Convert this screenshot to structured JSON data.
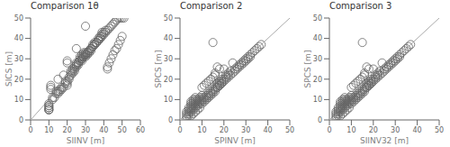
{
  "chart_data": [
    {
      "type": "scatter",
      "title": "Comparison 1θ",
      "x_label": "SIINV [m]",
      "y_label": "SICS [m]",
      "xlim": [
        0,
        60
      ],
      "ylim": [
        0,
        50
      ],
      "xticks": [
        0,
        10,
        20,
        30,
        40,
        50,
        60
      ],
      "yticks": [
        0,
        10,
        20,
        30,
        40,
        50
      ],
      "grid": false,
      "series": [
        {
          "type": "line",
          "color": "#aaaaaa",
          "x": [
            0,
            50
          ],
          "values": [
            0,
            50
          ]
        },
        {
          "type": "scatter",
          "marker": "circle",
          "color": "#666666",
          "x": [
            10,
            10,
            10,
            10,
            10,
            10,
            10,
            10,
            11,
            11,
            11,
            12,
            12,
            13,
            14,
            14,
            15,
            15,
            15,
            16,
            16,
            17,
            17,
            18,
            18,
            19,
            19,
            20,
            20,
            20,
            20,
            20,
            21,
            21,
            22,
            22,
            23,
            23,
            24,
            24,
            25,
            25,
            25,
            25,
            26,
            26,
            27,
            27,
            27,
            28,
            28,
            28,
            28,
            29,
            29,
            29,
            30,
            30,
            30,
            30,
            31,
            31,
            32,
            32,
            33,
            33,
            33,
            34,
            34,
            35,
            35,
            36,
            37,
            37,
            38,
            38,
            39,
            39,
            40,
            41,
            42,
            42,
            43,
            44,
            45,
            46,
            47,
            48,
            49,
            50,
            22,
            23,
            24,
            25,
            26,
            27,
            28,
            29,
            30,
            31,
            32,
            33,
            34,
            35,
            36,
            37,
            38,
            39,
            40,
            41,
            42,
            43,
            44,
            45,
            46,
            47,
            48,
            49,
            50,
            51
          ],
          "values": [
            5,
            5,
            5,
            6,
            6,
            7,
            7,
            8,
            15,
            16,
            17,
            10,
            11,
            11,
            13,
            14,
            13,
            14,
            20,
            14,
            15,
            15,
            16,
            16,
            22,
            18,
            19,
            17,
            18,
            19,
            28,
            29,
            20,
            21,
            22,
            23,
            23,
            24,
            24,
            25,
            26,
            27,
            28,
            35,
            27,
            28,
            29,
            30,
            31,
            29,
            30,
            31,
            32,
            31,
            32,
            33,
            31,
            32,
            33,
            46,
            32,
            33,
            33,
            34,
            34,
            35,
            35,
            36,
            37,
            37,
            38,
            38,
            39,
            40,
            40,
            41,
            42,
            43,
            43,
            44,
            25,
            26,
            28,
            30,
            32,
            34,
            35,
            37,
            39,
            41,
            24,
            25,
            26,
            27,
            28,
            29,
            30,
            31,
            32,
            33,
            34,
            35,
            36,
            37,
            38,
            39,
            40,
            41,
            42,
            43,
            44,
            45,
            46,
            47,
            48,
            49,
            50,
            50,
            50,
            50
          ]
        }
      ]
    },
    {
      "type": "scatter",
      "title": "Comparison 2",
      "x_label": "SPINV [m]",
      "y_label": "SPCS [m]",
      "xlim": [
        0,
        50
      ],
      "ylim": [
        0,
        50
      ],
      "xticks": [
        0,
        10,
        20,
        30,
        40,
        50
      ],
      "yticks": [
        0,
        10,
        20,
        30,
        40,
        50
      ],
      "grid": false,
      "series": [
        {
          "type": "line",
          "color": "#aaaaaa",
          "x": [
            0,
            50
          ],
          "values": [
            0,
            50
          ]
        },
        {
          "type": "scatter",
          "marker": "circle",
          "color": "#666666",
          "x": [
            3,
            3,
            3,
            4,
            4,
            4,
            4,
            5,
            5,
            5,
            5,
            5,
            5,
            6,
            6,
            6,
            6,
            6,
            6,
            7,
            7,
            7,
            7,
            7,
            7,
            8,
            8,
            8,
            8,
            9,
            9,
            9,
            9,
            10,
            10,
            10,
            10,
            10,
            11,
            11,
            11,
            12,
            12,
            12,
            13,
            13,
            13,
            14,
            14,
            14,
            15,
            15,
            15,
            15,
            16,
            16,
            16,
            16,
            17,
            17,
            17,
            17,
            18,
            18,
            18,
            18,
            19,
            19,
            19,
            20,
            20,
            21,
            21,
            22,
            22,
            23,
            24,
            25,
            26,
            27,
            28,
            29,
            30,
            31,
            32,
            33,
            34,
            35,
            36,
            37,
            3,
            4,
            5,
            6,
            7,
            8,
            9,
            10,
            11,
            12,
            13,
            14,
            15,
            16,
            17,
            18,
            19,
            20,
            21,
            22,
            23,
            24,
            25,
            26,
            27,
            28,
            29,
            30,
            31,
            32
          ],
          "values": [
            2,
            3,
            4,
            3,
            4,
            5,
            6,
            4,
            5,
            6,
            7,
            8,
            9,
            5,
            6,
            7,
            8,
            9,
            10,
            6,
            7,
            8,
            9,
            10,
            11,
            7,
            8,
            9,
            10,
            8,
            9,
            10,
            11,
            9,
            10,
            11,
            12,
            16,
            10,
            11,
            17,
            11,
            12,
            18,
            12,
            13,
            19,
            13,
            14,
            20,
            14,
            15,
            21,
            38,
            15,
            16,
            22,
            23,
            16,
            17,
            18,
            26,
            17,
            18,
            19,
            25,
            18,
            19,
            20,
            20,
            25,
            21,
            22,
            22,
            23,
            24,
            28,
            25,
            26,
            27,
            28,
            29,
            30,
            31,
            32,
            33,
            34,
            35,
            36,
            37,
            1,
            2,
            2,
            3,
            4,
            5,
            6,
            8,
            9,
            10,
            11,
            12,
            13,
            14,
            16,
            17,
            18,
            19,
            20,
            21,
            22,
            23,
            24,
            25,
            26,
            27,
            28,
            29,
            30,
            31
          ]
        }
      ]
    },
    {
      "type": "scatter",
      "title": "Comparison 3",
      "x_label": "SIINV32 [m]",
      "y_label": "SPCS [m]",
      "xlim": [
        0,
        50
      ],
      "ylim": [
        0,
        50
      ],
      "xticks": [
        0,
        10,
        20,
        30,
        40,
        50
      ],
      "yticks": [
        0,
        10,
        20,
        30,
        40,
        50
      ],
      "grid": false,
      "series": [
        {
          "type": "line",
          "color": "#aaaaaa",
          "x": [
            0,
            50
          ],
          "values": [
            0,
            50
          ]
        },
        {
          "type": "scatter",
          "marker": "circle",
          "color": "#666666",
          "x": [
            3,
            3,
            3,
            4,
            4,
            4,
            4,
            5,
            5,
            5,
            5,
            5,
            5,
            6,
            6,
            6,
            6,
            6,
            6,
            7,
            7,
            7,
            7,
            7,
            7,
            8,
            8,
            8,
            8,
            9,
            9,
            9,
            9,
            10,
            10,
            10,
            10,
            10,
            11,
            11,
            11,
            12,
            12,
            12,
            13,
            13,
            13,
            14,
            14,
            14,
            15,
            15,
            15,
            15,
            16,
            16,
            16,
            16,
            17,
            17,
            17,
            17,
            18,
            18,
            18,
            18,
            19,
            19,
            19,
            20,
            20,
            21,
            21,
            22,
            22,
            23,
            24,
            25,
            26,
            27,
            28,
            29,
            30,
            31,
            32,
            33,
            34,
            35,
            36,
            37,
            3,
            4,
            5,
            6,
            7,
            8,
            9,
            10,
            11,
            12,
            13,
            14,
            15,
            16,
            17,
            18,
            19,
            20,
            21,
            22,
            23,
            24,
            25,
            26,
            27,
            28,
            29,
            30,
            31,
            32
          ],
          "values": [
            2,
            3,
            4,
            3,
            4,
            5,
            6,
            4,
            5,
            6,
            7,
            8,
            9,
            5,
            6,
            7,
            8,
            9,
            10,
            6,
            7,
            8,
            9,
            10,
            11,
            7,
            8,
            9,
            10,
            8,
            9,
            10,
            11,
            9,
            10,
            11,
            12,
            16,
            10,
            11,
            17,
            11,
            12,
            18,
            12,
            13,
            19,
            13,
            14,
            20,
            14,
            15,
            21,
            38,
            15,
            16,
            22,
            23,
            16,
            17,
            18,
            26,
            17,
            18,
            19,
            25,
            18,
            19,
            20,
            20,
            25,
            21,
            22,
            22,
            23,
            24,
            28,
            25,
            26,
            27,
            28,
            29,
            30,
            31,
            32,
            33,
            34,
            35,
            36,
            37,
            1,
            2,
            2,
            3,
            4,
            5,
            6,
            8,
            9,
            10,
            11,
            12,
            13,
            14,
            16,
            17,
            18,
            19,
            20,
            21,
            22,
            23,
            24,
            25,
            26,
            27,
            28,
            29,
            30,
            31
          ]
        }
      ]
    }
  ]
}
